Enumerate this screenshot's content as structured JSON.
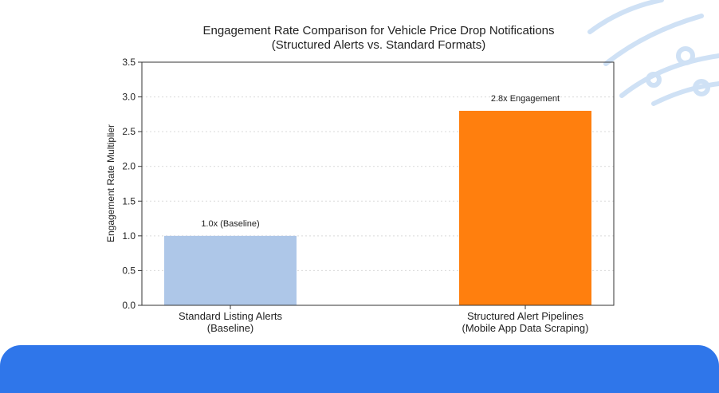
{
  "colors": {
    "baseline_bar": "#aec7e8",
    "structured_bar": "#ff7f0e",
    "footer": "#2f76ea",
    "decoration": "#cfe1f5"
  },
  "chart_data": {
    "type": "bar",
    "title_line1": "Engagement Rate Comparison for Vehicle Price Drop Notifications",
    "title_line2": "(Structured Alerts vs. Standard Formats)",
    "xlabel": "",
    "ylabel": "Engagement Rate Multiplier",
    "ylim": [
      0,
      3.5
    ],
    "yticks": [
      "0.0",
      "0.5",
      "1.0",
      "1.5",
      "2.0",
      "2.5",
      "3.0",
      "3.5"
    ],
    "grid": true,
    "categories": [
      [
        "Standard Listing Alerts",
        "(Baseline)"
      ],
      [
        "Structured Alert Pipelines",
        "(Mobile App Data Scraping)"
      ]
    ],
    "values": [
      1.0,
      2.8
    ],
    "data_labels": [
      "1.0x (Baseline)",
      "2.8x Engagement"
    ]
  }
}
